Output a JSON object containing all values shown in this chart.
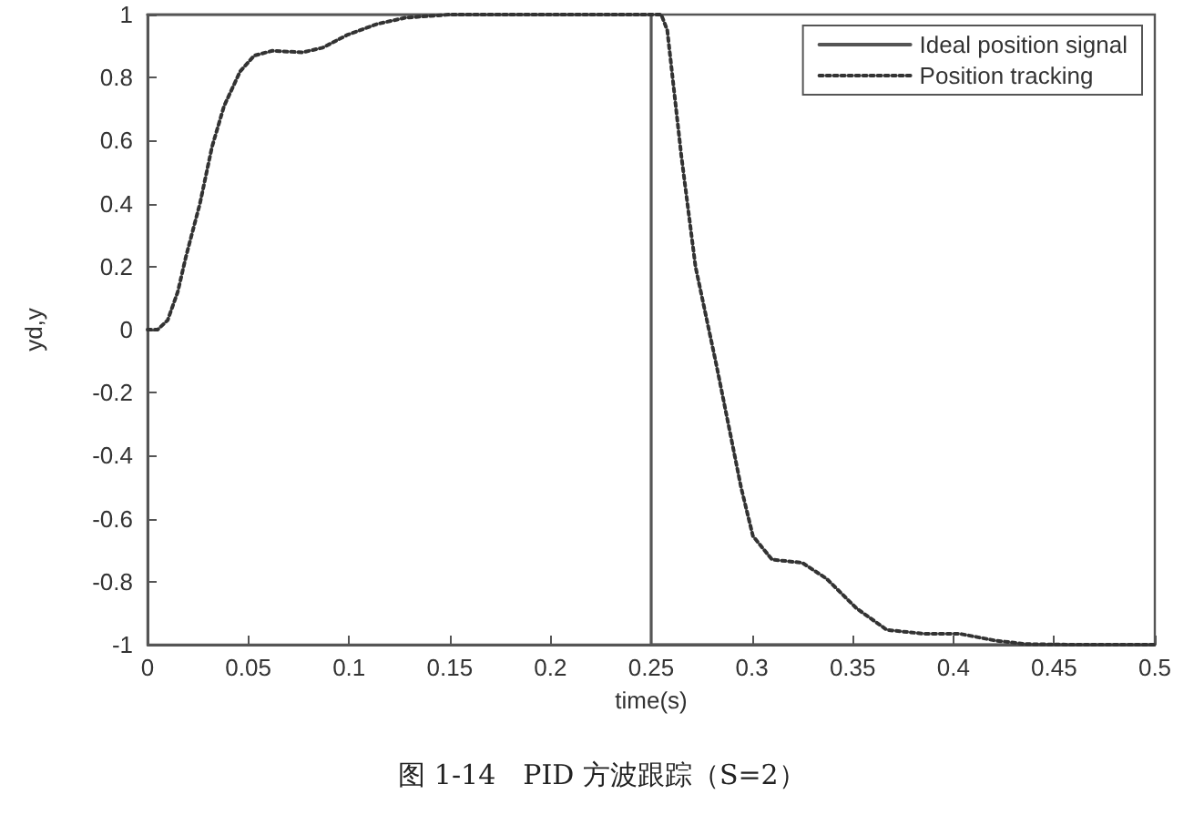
{
  "chart_data": {
    "type": "line",
    "xlabel": "time(s)",
    "ylabel": "yd,y",
    "annotations": [
      "图 1-14　PID 方波跟踪（S=2）"
    ],
    "xlim": [
      0,
      0.5
    ],
    "ylim": [
      -1,
      1
    ],
    "xticks": [
      0,
      0.05,
      0.1,
      0.15,
      0.2,
      0.25,
      0.3,
      0.35,
      0.4,
      0.45,
      0.5
    ],
    "yticks": [
      -1,
      -0.8,
      -0.6,
      -0.4,
      -0.2,
      0,
      0.2,
      0.4,
      0.6,
      0.8,
      1
    ],
    "grid": false,
    "legend": "top right",
    "marker": "none",
    "series": [
      {
        "name": "Ideal position signal",
        "color": "#555555",
        "line_style": "solid",
        "x": [
          0,
          0.25,
          0.25,
          0.5
        ],
        "values": [
          1,
          1,
          -1,
          -1
        ]
      },
      {
        "name": "Position tracking",
        "color": "#333333",
        "line_style": "dotted",
        "x": [
          0,
          0.005,
          0.01,
          0.015,
          0.019,
          0.026,
          0.032,
          0.038,
          0.046,
          0.053,
          0.062,
          0.077,
          0.087,
          0.099,
          0.114,
          0.128,
          0.15,
          0.2,
          0.25,
          0.255,
          0.258,
          0.265,
          0.272,
          0.2825,
          0.2885,
          0.2946,
          0.3005,
          0.31,
          0.325,
          0.337,
          0.352,
          0.367,
          0.385,
          0.403,
          0.421,
          0.436,
          0.46,
          0.5
        ],
        "values": [
          0,
          0,
          0.03,
          0.12,
          0.23,
          0.4,
          0.58,
          0.71,
          0.82,
          0.87,
          0.885,
          0.88,
          0.895,
          0.935,
          0.97,
          0.99,
          1,
          1,
          1,
          1,
          0.95,
          0.55,
          0.2,
          -0.116,
          -0.306,
          -0.5,
          -0.655,
          -0.73,
          -0.74,
          -0.79,
          -0.885,
          -0.953,
          -0.965,
          -0.965,
          -0.987,
          -0.998,
          -1,
          -1
        ]
      }
    ]
  }
}
